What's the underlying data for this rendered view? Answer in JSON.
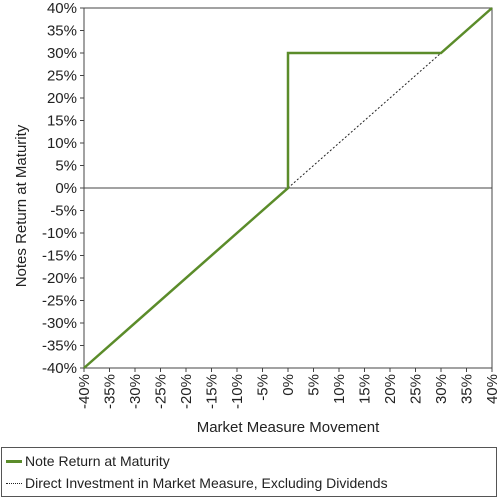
{
  "chart_data": {
    "type": "line",
    "xlabel": "Market Measure Movement",
    "ylabel": "Notes Return at Maturity",
    "xlim": [
      -40,
      40
    ],
    "ylim": [
      -40,
      40
    ],
    "x_ticks": [
      "-40%",
      "-35%",
      "-30%",
      "-25%",
      "-20%",
      "-15%",
      "-10%",
      "-5%",
      "0%",
      "5%",
      "10%",
      "15%",
      "20%",
      "25%",
      "30%",
      "35%",
      "40%"
    ],
    "y_ticks": [
      "40%",
      "35%",
      "30%",
      "25%",
      "20%",
      "15%",
      "10%",
      "5%",
      "0%",
      "-5%",
      "-10%",
      "-15%",
      "-20%",
      "-25%",
      "-30%",
      "-35%",
      "-40%"
    ],
    "grid": false,
    "legend_placement": "bottom",
    "series": [
      {
        "name": "Note Return at Maturity",
        "color": "#5b8c2a",
        "style": "solid",
        "points": [
          [
            -40,
            -40
          ],
          [
            0,
            0
          ],
          [
            0,
            30
          ],
          [
            30,
            30
          ],
          [
            40,
            40
          ]
        ]
      },
      {
        "name": "Direct Investment in Market Measure, Excluding Dividends",
        "color": "#222222",
        "style": "dotted",
        "points": [
          [
            0,
            0
          ],
          [
            30,
            30
          ]
        ]
      }
    ]
  }
}
